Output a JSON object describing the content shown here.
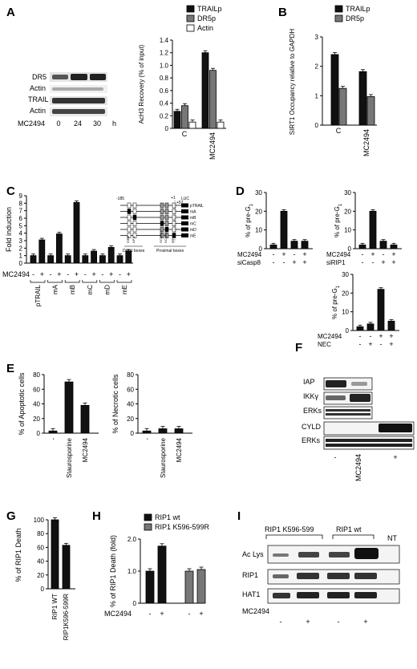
{
  "panels": {
    "A": {
      "label": "A",
      "blot_rows": [
        "DR5",
        "Actin",
        "TRAIL",
        "Actin"
      ],
      "blot_time_label": "MC2494",
      "blot_times": [
        "0",
        "24",
        "30"
      ],
      "blot_time_unit": "h",
      "chart_data": {
        "type": "bar",
        "categories": [
          "C",
          "MC2494"
        ],
        "series": [
          {
            "name": "TRAILp",
            "values": [
              0.27,
              1.2
            ],
            "color": "#111111"
          },
          {
            "name": "DR5p",
            "values": [
              0.36,
              0.92
            ],
            "color": "#777777"
          },
          {
            "name": "Actin",
            "values": [
              0.1,
              0.1
            ],
            "color": "#ffffff"
          }
        ],
        "ylabel": "AcH3 Recovery (% of input)",
        "ylim": [
          0,
          1.4
        ],
        "yticks": [
          "0",
          "0.2",
          "0.4",
          "0.6",
          "0.8",
          "1.0",
          "1.2",
          "1.4"
        ],
        "legend": "top"
      }
    },
    "B": {
      "label": "B",
      "chart_data": {
        "type": "bar",
        "categories": [
          "C",
          "MC2494"
        ],
        "series": [
          {
            "name": "TRAILp",
            "values": [
              2.4,
              1.82
            ],
            "color": "#111111"
          },
          {
            "name": "DR5p",
            "values": [
              1.25,
              0.97
            ],
            "color": "#777777"
          }
        ],
        "ylabel": "SIRT1 Occupancy relative to GAPDH",
        "ylim": [
          0,
          3
        ],
        "yticks": [
          "0",
          "1",
          "2",
          "3"
        ],
        "legend": "top"
      }
    },
    "C": {
      "label": "C",
      "chart_data": {
        "type": "bar",
        "values": [
          1.0,
          3.1,
          1.0,
          3.9,
          1.0,
          8.1,
          1.0,
          1.6,
          1.0,
          2.1,
          1.0,
          1.6
        ],
        "errors": [
          0.1,
          0.12,
          0.1,
          0.15,
          0.1,
          0.15,
          0.1,
          0.12,
          0.1,
          0.12,
          0.1,
          0.12
        ],
        "ylabel": "Fold induction",
        "ylim": [
          0,
          9
        ],
        "yticks": [
          "0",
          "1",
          "2",
          "3",
          "4",
          "5",
          "6",
          "7",
          "8",
          "9"
        ],
        "groups": [
          "pTRAIL",
          "mA",
          "mB",
          "mC",
          "mD",
          "mE"
        ],
        "treatment_label": "MC2494",
        "treatment_signs": [
          "-",
          "+",
          "-",
          "+",
          "-",
          "+",
          "-",
          "+",
          "-",
          "+",
          "-",
          "+"
        ]
      },
      "diagram": {
        "pos_left": "-185",
        "pos_right1": "+1",
        "pos_right2": "+57",
        "luc": "LUC",
        "constructs": [
          "pTRAIL",
          "mA",
          "mB",
          "mC",
          "mD",
          "mE"
        ],
        "site_labels": [
          "ISRE",
          "AP-1",
          "GC-BOX",
          "GC-BOX",
          "IRF-E"
        ],
        "distal": "Distal boxes",
        "proximal": "Proximal boxes"
      }
    },
    "D": {
      "label": "D",
      "ylabel": "% of pre-G",
      "ylabel_sub": "1",
      "charts": [
        {
          "type": "bar",
          "values": [
            2,
            20,
            4,
            4
          ],
          "ylim": [
            0,
            30
          ],
          "yticks": [
            "0",
            "10",
            "20",
            "30"
          ],
          "row1_label": "MC2494",
          "row1_signs": [
            "-",
            "+",
            "-",
            "+"
          ],
          "row2_label": "siCasp8",
          "row2_signs": [
            "-",
            "-",
            "+",
            "+"
          ]
        },
        {
          "type": "bar",
          "values": [
            2,
            20,
            4,
            2
          ],
          "ylim": [
            0,
            30
          ],
          "yticks": [
            "0",
            "10",
            "20",
            "30"
          ],
          "row1_label": "MC2494",
          "row1_signs": [
            "-",
            "+",
            "-",
            "+"
          ],
          "row2_label": "siRIP1",
          "row2_signs": [
            "-",
            "-",
            "+",
            "+"
          ]
        },
        {
          "type": "bar",
          "values": [
            2,
            3.5,
            22,
            5
          ],
          "ylim": [
            0,
            30
          ],
          "yticks": [
            "0",
            "10",
            "20",
            "30"
          ],
          "row1_label": "MC2494",
          "row1_signs": [
            "-",
            "-",
            "+",
            "+"
          ],
          "row2_label": "NEC",
          "row2_signs": [
            "-",
            "+",
            "-",
            "+"
          ]
        }
      ]
    },
    "E": {
      "label": "E",
      "charts": [
        {
          "type": "bar",
          "categories": [
            "-",
            "Staurosporine",
            "MC2494"
          ],
          "values": [
            3,
            70,
            38
          ],
          "ylabel": "% of Apoptotic cells",
          "ylim": [
            0,
            80
          ],
          "yticks": [
            "0",
            "20",
            "40",
            "60",
            "80"
          ]
        },
        {
          "type": "bar",
          "categories": [
            "-",
            "Staurosporine",
            "MC2494"
          ],
          "values": [
            3,
            6,
            6
          ],
          "ylabel": "% of Necrotic cells",
          "ylim": [
            0,
            80
          ],
          "yticks": [
            "0",
            "20",
            "40",
            "60",
            "80"
          ]
        }
      ]
    },
    "F": {
      "label": "F",
      "blot_rows": [
        "IAP",
        "IKKγ",
        "ERKs",
        "CYLD",
        "ERKs"
      ],
      "lanes": [
        "-",
        "MC2494",
        "+"
      ]
    },
    "G": {
      "label": "G",
      "chart_data": {
        "type": "bar",
        "categories": [
          "RIP1 WT",
          "RIP1K596-599R"
        ],
        "values": [
          100,
          63
        ],
        "ylabel": "% of RIP1 Death",
        "ylim": [
          0,
          100
        ],
        "yticks": [
          "0",
          "20",
          "40",
          "60",
          "80",
          "100"
        ]
      }
    },
    "H": {
      "label": "H",
      "chart_data": {
        "type": "bar",
        "series": [
          {
            "name": "RIP1 wt",
            "values": [
              1.0,
              1.78
            ],
            "color": "#111111"
          },
          {
            "name": "RIP1 K596-599R",
            "values": [
              1.0,
              1.05
            ],
            "color": "#777777"
          }
        ],
        "ylabel": "% of RIP1 Death (fold)",
        "ylim": [
          0,
          2.0
        ],
        "yticks": [
          "0",
          "1.0",
          "2.0"
        ],
        "treatment_label": "MC2494",
        "treatment_signs": [
          "-",
          "+",
          "-",
          "+"
        ],
        "legend": "top"
      }
    },
    "I": {
      "label": "I",
      "groups": [
        "RIP1 K596-599",
        "RIP1 wt",
        "NT"
      ],
      "blot_rows": [
        "Ac Lys",
        "RIP1",
        "HAT1"
      ],
      "treatment_label": "MC2494",
      "treatment_signs": [
        "-",
        "+",
        "-",
        "+"
      ]
    }
  }
}
